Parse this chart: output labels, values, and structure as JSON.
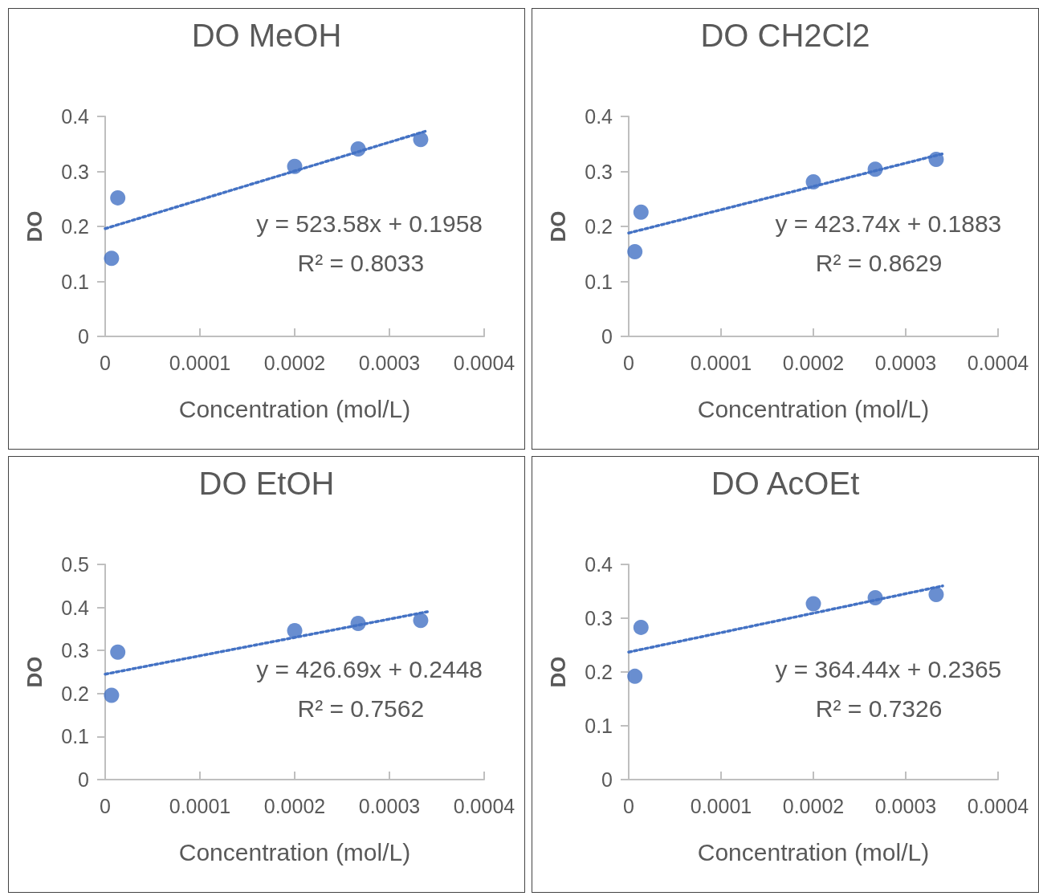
{
  "chart_data": [
    {
      "type": "scatter",
      "title": "DO MeOH",
      "xlabel": "Concentration (mol/L)",
      "ylabel": "DO",
      "xlim": [
        0,
        0.0004
      ],
      "xticks": [
        0,
        0.0001,
        0.0002,
        0.0003,
        0.0004
      ],
      "ylim": [
        0,
        0.4
      ],
      "yticks": [
        0,
        0.1,
        0.2,
        0.3,
        0.4
      ],
      "grid": false,
      "annotations": [
        "y = 523.58x + 0.1958",
        "R² = 0.8033"
      ],
      "series": [
        {
          "type": "scatter",
          "marker": "circle",
          "color": "#4472c4",
          "x": [
            6.7e-06,
            1.33e-05,
            0.0002,
            0.000267,
            0.000333
          ],
          "values": [
            0.142,
            0.252,
            0.309,
            0.341,
            0.358
          ]
        },
        {
          "type": "line",
          "marker": "none",
          "line_style": "dotted",
          "color": "#4472c4",
          "x": [
            0,
            0.00034
          ],
          "values": [
            0.196,
            0.374
          ]
        }
      ]
    },
    {
      "type": "scatter",
      "title": "DO CH2Cl2",
      "xlabel": "Concentration (mol/L)",
      "ylabel": "DO",
      "xlim": [
        0,
        0.0004
      ],
      "xticks": [
        0,
        0.0001,
        0.0002,
        0.0003,
        0.0004
      ],
      "ylim": [
        0,
        0.4
      ],
      "yticks": [
        0,
        0.1,
        0.2,
        0.3,
        0.4
      ],
      "grid": false,
      "annotations": [
        "y = 423.74x + 0.1883",
        "R² = 0.8629"
      ],
      "series": [
        {
          "type": "scatter",
          "marker": "circle",
          "color": "#4472c4",
          "x": [
            6.7e-06,
            1.33e-05,
            0.0002,
            0.000267,
            0.000333
          ],
          "values": [
            0.154,
            0.226,
            0.281,
            0.304,
            0.322
          ]
        },
        {
          "type": "line",
          "marker": "none",
          "line_style": "dotted",
          "color": "#4472c4",
          "x": [
            0,
            0.00034
          ],
          "values": [
            0.188,
            0.332
          ]
        }
      ]
    },
    {
      "type": "scatter",
      "title": "DO EtOH",
      "xlabel": "Concentration (mol/L)",
      "ylabel": "DO",
      "xlim": [
        0,
        0.0004
      ],
      "xticks": [
        0,
        0.0001,
        0.0002,
        0.0003,
        0.0004
      ],
      "ylim": [
        0,
        0.5
      ],
      "yticks": [
        0,
        0.1,
        0.2,
        0.3,
        0.4,
        0.5
      ],
      "grid": false,
      "annotations": [
        "y = 426.69x + 0.2448",
        "R² = 0.7562"
      ],
      "series": [
        {
          "type": "scatter",
          "marker": "circle",
          "color": "#4472c4",
          "x": [
            6.7e-06,
            1.33e-05,
            0.0002,
            0.000267,
            0.000333
          ],
          "values": [
            0.196,
            0.296,
            0.346,
            0.363,
            0.37
          ]
        },
        {
          "type": "line",
          "marker": "none",
          "line_style": "dotted",
          "color": "#4472c4",
          "x": [
            0,
            0.00034
          ],
          "values": [
            0.245,
            0.39
          ]
        }
      ]
    },
    {
      "type": "scatter",
      "title": "DO AcOEt",
      "xlabel": "Concentration (mol/L)",
      "ylabel": "DO",
      "xlim": [
        0,
        0.0004
      ],
      "xticks": [
        0,
        0.0001,
        0.0002,
        0.0003,
        0.0004
      ],
      "ylim": [
        0,
        0.4
      ],
      "yticks": [
        0,
        0.1,
        0.2,
        0.3,
        0.4
      ],
      "grid": false,
      "annotations": [
        "y = 364.44x + 0.2365",
        "R² = 0.7326"
      ],
      "series": [
        {
          "type": "scatter",
          "marker": "circle",
          "color": "#4472c4",
          "x": [
            6.7e-06,
            1.33e-05,
            0.0002,
            0.000267,
            0.000333
          ],
          "values": [
            0.192,
            0.283,
            0.327,
            0.338,
            0.344
          ]
        },
        {
          "type": "line",
          "marker": "none",
          "line_style": "dotted",
          "color": "#4472c4",
          "x": [
            0,
            0.00034
          ],
          "values": [
            0.237,
            0.36
          ]
        }
      ]
    }
  ]
}
